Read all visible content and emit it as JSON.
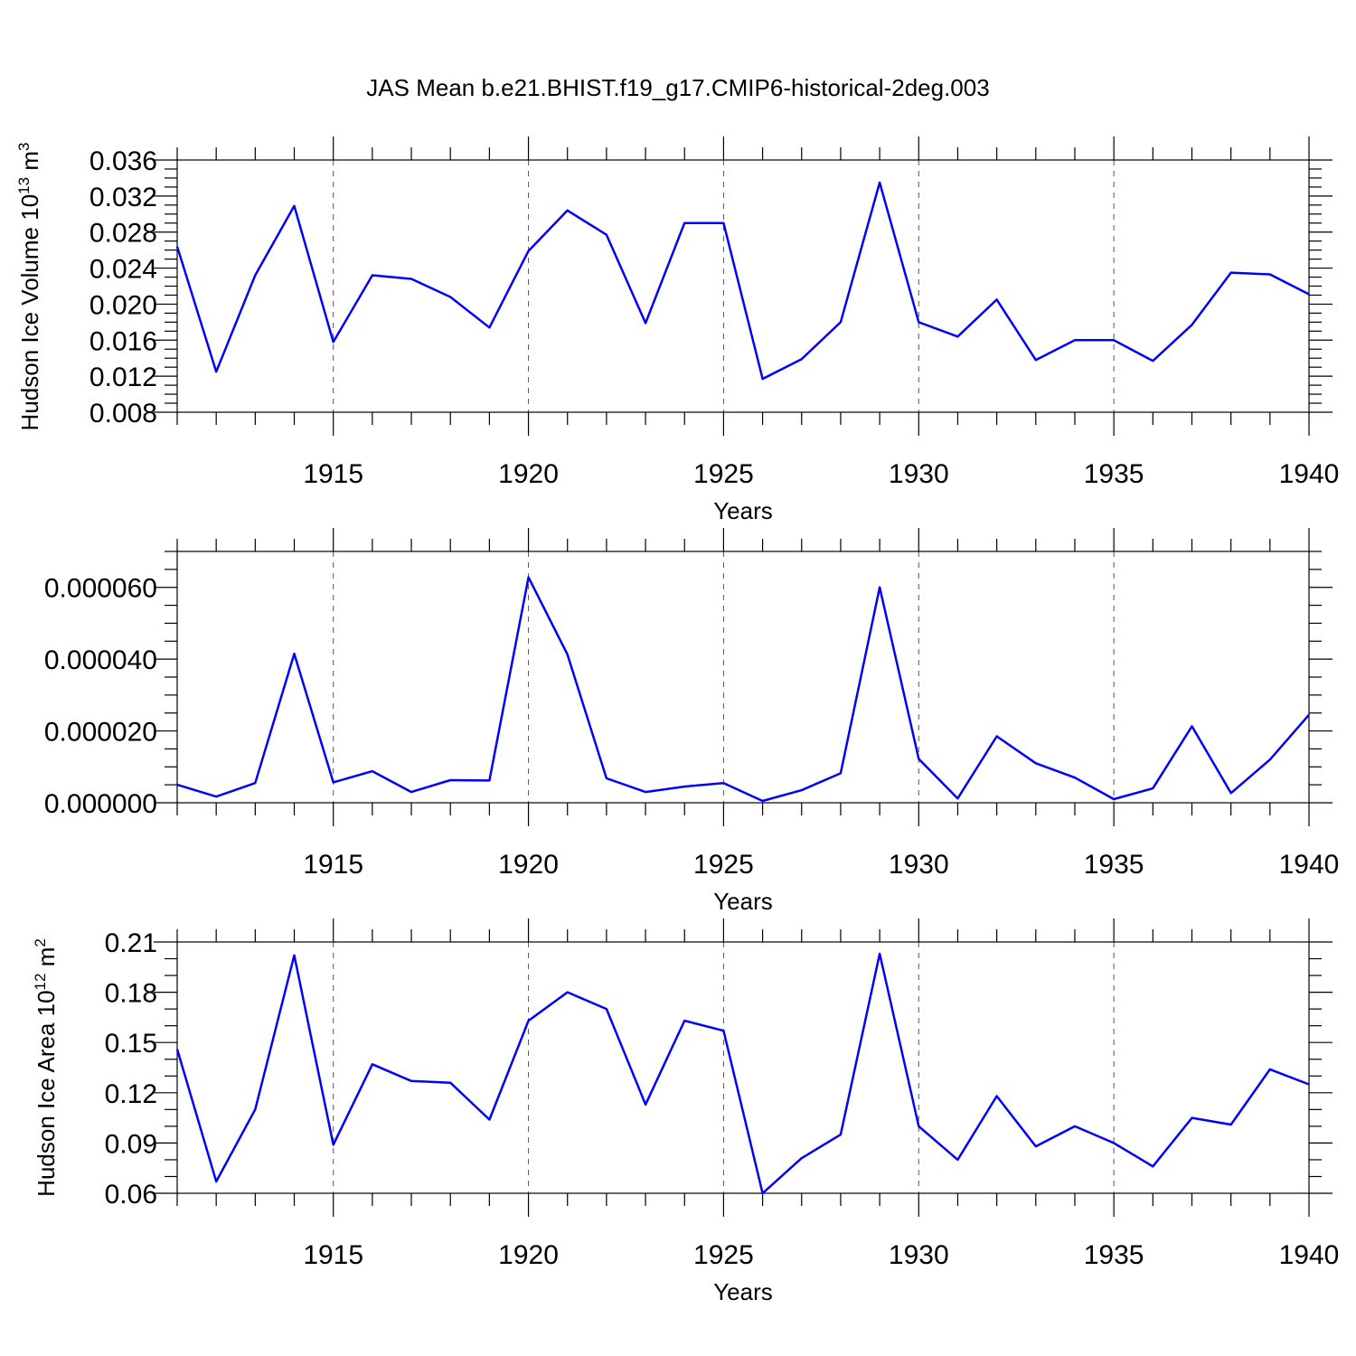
{
  "title": "JAS Mean b.e21.BHIST.f19_g17.CMIP6-historical-2deg.003",
  "line_color": "#0000ff",
  "chart_data": [
    {
      "type": "line",
      "ylabel_main": "Hudson Ice Volume 10",
      "ylabel_exp": "13",
      "ylabel_unit": " m",
      "ylabel_unit_exp": "3",
      "xlabel": "Years",
      "xlim": [
        1911,
        1940
      ],
      "ylim": [
        0.008,
        0.036
      ],
      "x_ticks": [
        "1915",
        "1920",
        "1925",
        "1930",
        "1935",
        "1940"
      ],
      "y_ticks": [
        "0.008",
        "0.012",
        "0.016",
        "0.020",
        "0.024",
        "0.028",
        "0.032",
        "0.036"
      ],
      "grid": "vertical dashed at labeled years",
      "x": [
        1911,
        1912,
        1913,
        1914,
        1915,
        1916,
        1917,
        1918,
        1919,
        1920,
        1921,
        1922,
        1923,
        1924,
        1925,
        1926,
        1927,
        1928,
        1929,
        1930,
        1931,
        1932,
        1933,
        1934,
        1935,
        1936,
        1937,
        1938,
        1939,
        1940
      ],
      "values": [
        0.0264,
        0.0125,
        0.0232,
        0.0309,
        0.0158,
        0.0232,
        0.0228,
        0.0208,
        0.0174,
        0.0259,
        0.0304,
        0.0277,
        0.0179,
        0.029,
        0.029,
        0.0117,
        0.0139,
        0.018,
        0.0335,
        0.018,
        0.0164,
        0.0205,
        0.0138,
        0.016,
        0.016,
        0.0137,
        0.0177,
        0.0235,
        0.0233,
        0.0211
      ]
    },
    {
      "type": "line",
      "ylabel_main": "",
      "ylabel_exp": "",
      "ylabel_unit": "",
      "ylabel_unit_exp": "",
      "xlabel": "Years",
      "xlim": [
        1911,
        1940
      ],
      "ylim": [
        0.0,
        7e-05
      ],
      "x_ticks": [
        "1915",
        "1920",
        "1925",
        "1930",
        "1935",
        "1940"
      ],
      "y_ticks": [
        "0.000000",
        "0.000020",
        "0.000040",
        "0.000060"
      ],
      "grid": "vertical dashed at labeled years",
      "x": [
        1911,
        1912,
        1913,
        1914,
        1915,
        1916,
        1917,
        1918,
        1919,
        1920,
        1921,
        1922,
        1923,
        1924,
        1925,
        1926,
        1927,
        1928,
        1929,
        1930,
        1931,
        1932,
        1933,
        1934,
        1935,
        1936,
        1937,
        1938,
        1939,
        1940
      ],
      "values": [
        5e-06,
        1.7e-06,
        5.5e-06,
        4.15e-05,
        5.7e-06,
        8.8e-06,
        3e-06,
        6.3e-06,
        6.2e-06,
        6.28e-05,
        4.13e-05,
        6.8e-06,
        3e-06,
        4.5e-06,
        5.5e-06,
        5e-07,
        3.5e-06,
        8.2e-06,
        6e-05,
        1.22e-05,
        1.2e-06,
        1.85e-05,
        1.1e-05,
        7e-06,
        1e-06,
        4e-06,
        2.13e-05,
        2.7e-06,
        1.2e-05,
        2.45e-05
      ]
    },
    {
      "type": "line",
      "ylabel_main": "Hudson Ice Area 10",
      "ylabel_exp": "12",
      "ylabel_unit": " m",
      "ylabel_unit_exp": "2",
      "xlabel": "Years",
      "xlim": [
        1911,
        1940
      ],
      "ylim": [
        0.06,
        0.21
      ],
      "x_ticks": [
        "1915",
        "1920",
        "1925",
        "1930",
        "1935",
        "1940"
      ],
      "y_ticks": [
        "0.06",
        "0.09",
        "0.12",
        "0.15",
        "0.18",
        "0.21"
      ],
      "grid": "vertical dashed at labeled years",
      "x": [
        1911,
        1912,
        1913,
        1914,
        1915,
        1916,
        1917,
        1918,
        1919,
        1920,
        1921,
        1922,
        1923,
        1924,
        1925,
        1926,
        1927,
        1928,
        1929,
        1930,
        1931,
        1932,
        1933,
        1934,
        1935,
        1936,
        1937,
        1938,
        1939,
        1940
      ],
      "values": [
        0.146,
        0.067,
        0.11,
        0.202,
        0.089,
        0.137,
        0.127,
        0.126,
        0.104,
        0.163,
        0.18,
        0.17,
        0.113,
        0.163,
        0.157,
        0.06,
        0.081,
        0.095,
        0.203,
        0.1,
        0.08,
        0.118,
        0.088,
        0.1,
        0.09,
        0.076,
        0.105,
        0.101,
        0.134,
        0.125
      ]
    }
  ]
}
